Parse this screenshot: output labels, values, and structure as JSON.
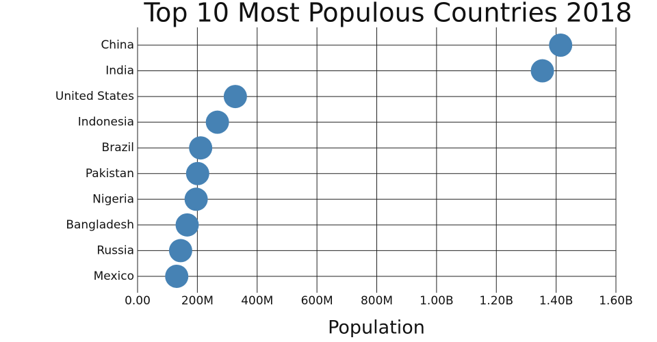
{
  "chart_data": {
    "type": "dot",
    "title": "Top 10 Most Populous Countries 2018",
    "x_label": "Population",
    "categories": [
      "China",
      "India",
      "United States",
      "Indonesia",
      "Brazil",
      "Pakistan",
      "Nigeria",
      "Bangladesh",
      "Russia",
      "Mexico"
    ],
    "values": [
      1415000000,
      1354000000,
      327000000,
      267000000,
      211000000,
      201000000,
      196000000,
      166000000,
      144000000,
      131000000
    ],
    "color": "#4682b4",
    "xlim": [
      0,
      1600000000
    ],
    "xticks": [
      {
        "value": 0,
        "label": "0.00"
      },
      {
        "value": 200000000,
        "label": "200M"
      },
      {
        "value": 400000000,
        "label": "400M"
      },
      {
        "value": 600000000,
        "label": "600M"
      },
      {
        "value": 800000000,
        "label": "800M"
      },
      {
        "value": 1000000000,
        "label": "1.00B"
      },
      {
        "value": 1200000000,
        "label": "1.20B"
      },
      {
        "value": 1400000000,
        "label": "1.40B"
      },
      {
        "value": 1600000000,
        "label": "1.60B"
      }
    ],
    "grid": true
  }
}
